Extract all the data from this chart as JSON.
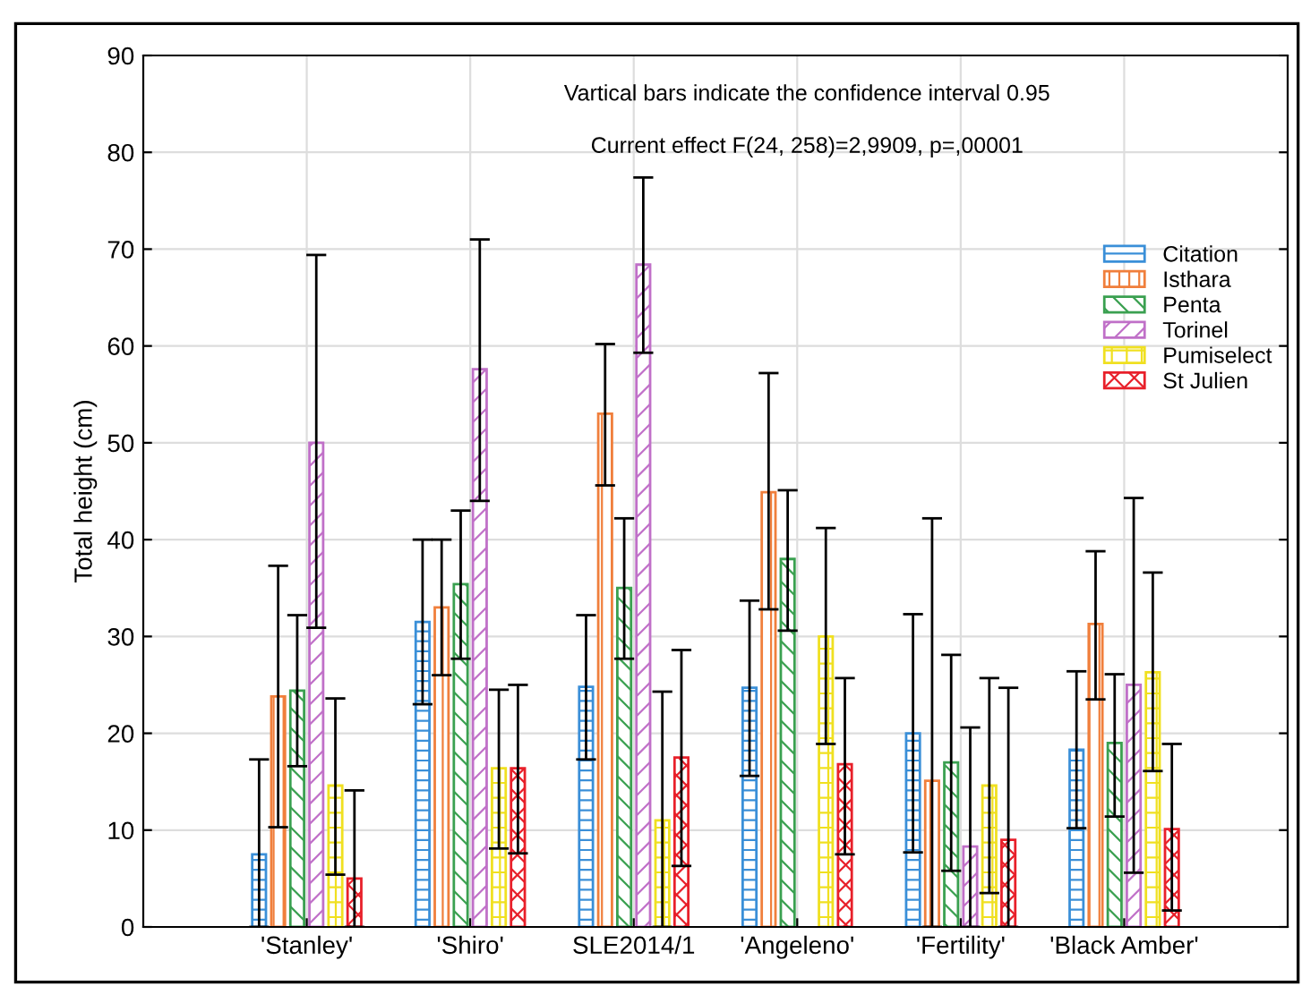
{
  "chart_data": {
    "type": "bar",
    "ylabel": "Total height (cm)",
    "annotations": [
      "Vartical bars indicate the confidence interval 0.95",
      "Current effect F(24, 258)=2,9909, p=,00001"
    ],
    "categories": [
      "'Stanley'",
      "'Shiro'",
      "SLE2014/1",
      "'Angeleno'",
      "'Fertility'",
      "'Black Amber'"
    ],
    "series": [
      {
        "name": "Citation",
        "color": "#3a8fd8",
        "values": [
          7.5,
          31.5,
          24.8,
          24.7,
          20.0,
          18.3
        ],
        "errors": [
          [
            0,
            17.3
          ],
          [
            23,
            40
          ],
          [
            17.3,
            32.2
          ],
          [
            15.6,
            33.7
          ],
          [
            7.7,
            32.3
          ],
          [
            10.2,
            26.4
          ]
        ]
      },
      {
        "name": "Isthara",
        "color": "#f07f3c",
        "values": [
          23.8,
          33.0,
          53.0,
          44.9,
          15.1,
          31.3
        ],
        "errors": [
          [
            10.3,
            37.3
          ],
          [
            26,
            40
          ],
          [
            45.6,
            60.2
          ],
          [
            32.8,
            57.2
          ],
          [
            0,
            42.2
          ],
          [
            23.5,
            38.8
          ]
        ]
      },
      {
        "name": "Penta",
        "color": "#3aa050",
        "values": [
          24.4,
          35.4,
          35.0,
          38.0,
          17.0,
          19.0
        ],
        "errors": [
          [
            16.6,
            32.2
          ],
          [
            27.7,
            43
          ],
          [
            27.7,
            42.2
          ],
          [
            30.6,
            45.1
          ],
          [
            5.8,
            28.1
          ],
          [
            11.4,
            26.1
          ]
        ]
      },
      {
        "name": "Torinel",
        "color": "#c070c8",
        "values": [
          50.0,
          57.6,
          68.4,
          null,
          8.3,
          25.0
        ],
        "errors": [
          [
            30.9,
            69.4
          ],
          [
            44,
            71
          ],
          [
            59.3,
            77.4
          ],
          null,
          [
            0,
            20.6
          ],
          [
            5.6,
            44.3
          ]
        ]
      },
      {
        "name": "Pumiselect",
        "color": "#f0e020",
        "values": [
          14.6,
          16.4,
          11.0,
          30.0,
          14.6,
          26.3
        ],
        "errors": [
          [
            5.4,
            23.6
          ],
          [
            8.1,
            24.5
          ],
          [
            0,
            24.3
          ],
          [
            18.9,
            41.2
          ],
          [
            3.5,
            25.7
          ],
          [
            16.1,
            36.6
          ]
        ]
      },
      {
        "name": "St Julien",
        "color": "#e8202a",
        "values": [
          5.0,
          16.4,
          17.5,
          16.8,
          9.0,
          10.1
        ],
        "errors": [
          [
            0,
            14.1
          ],
          [
            7.6,
            25
          ],
          [
            6.3,
            28.6
          ],
          [
            7.5,
            25.7
          ],
          [
            0,
            24.7
          ],
          [
            1.7,
            18.9
          ]
        ]
      }
    ],
    "ylim": [
      0,
      90
    ],
    "yticks": [
      0,
      10,
      20,
      30,
      40,
      50,
      60,
      70,
      80,
      90
    ],
    "grid": true,
    "legend": "right"
  }
}
